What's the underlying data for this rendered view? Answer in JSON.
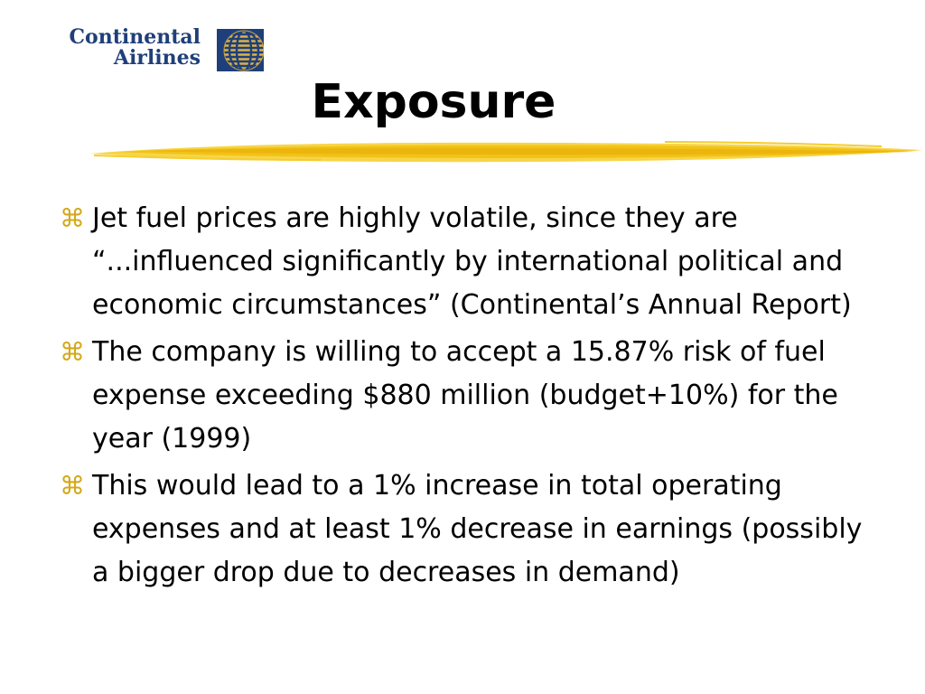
{
  "logo": {
    "line1": "Continental",
    "line2": "Airlines",
    "icon": "globe-icon",
    "color": "#1f3f7a"
  },
  "title": "Exposure",
  "accent_color": "#f2c217",
  "bullet_icon": "command-key-icon",
  "bullet_glyph": "⌘",
  "bullets": [
    {
      "text": "Jet fuel prices are highly volatile, since they are “...influenced significantly by international political and economic circumstances” (Continental’s Annual Report)"
    },
    {
      "text": "The company is willing to accept a 15.87% risk of fuel expense exceeding $880 million (budget+10%) for the year (1999)"
    },
    {
      "text": "This would lead to a 1% increase in total operating expenses and at least 1% decrease in earnings (possibly a bigger drop due to decreases in demand)"
    }
  ]
}
